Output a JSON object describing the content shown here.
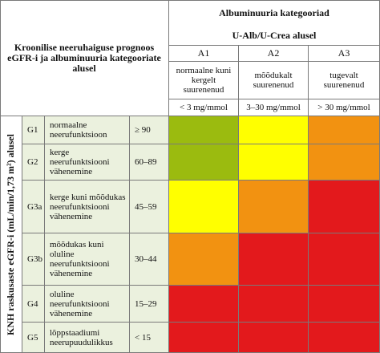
{
  "header": {
    "prognosis_title": "Kroonilise neeruhaiguse prognoos eGFR-i ja albuminuuria kategooriate alusel",
    "albuminuria_title": "Albuminuuria kategooriad",
    "albuminuria_subtitle": "U-Alb/U-Crea alusel",
    "categories": [
      {
        "code": "A1",
        "desc": "normaalne kuni kergelt suurenenud",
        "range": "< 3 mg/mmol"
      },
      {
        "code": "A2",
        "desc": "mõõdukalt suurenenud",
        "range": "3–30 mg/mmol"
      },
      {
        "code": "A3",
        "desc": "tugevalt suurenenud",
        "range": "> 30 mg/mmol"
      }
    ]
  },
  "side_label": "KNH raskusaste eGFR-i (mL/min/1,73 m²) alusel",
  "rows": [
    {
      "code": "G1",
      "desc": "normaalne neerufunktsioon",
      "range": "≥ 90",
      "risk": [
        "green",
        "yellow",
        "orange"
      ]
    },
    {
      "code": "G2",
      "desc": "kerge neerufunktsiooni vähenemine",
      "range": "60–89",
      "risk": [
        "green",
        "yellow",
        "orange"
      ]
    },
    {
      "code": "G3a",
      "desc": "kerge kuni mõõdukas neerufunktsiooni vähenemine",
      "range": "45–59",
      "risk": [
        "yellow",
        "orange",
        "red"
      ]
    },
    {
      "code": "G3b",
      "desc": "mõõdukas kuni oluline neerufunktsiooni vähenemine",
      "range": "30–44",
      "risk": [
        "orange",
        "red",
        "red"
      ]
    },
    {
      "code": "G4",
      "desc": "oluline neerufunktsiooni vähenemine",
      "range": "15–29",
      "risk": [
        "red",
        "red",
        "red"
      ]
    },
    {
      "code": "G5",
      "desc": "lõppstaadiumi neerupuudulikkus",
      "range": "< 15",
      "risk": [
        "red",
        "red",
        "red"
      ]
    }
  ],
  "colors": {
    "green": "#9bbb0f",
    "yellow": "#ffff00",
    "orange": "#f29211",
    "red": "#e3191c",
    "row_label_bg": "#ebf1de"
  }
}
